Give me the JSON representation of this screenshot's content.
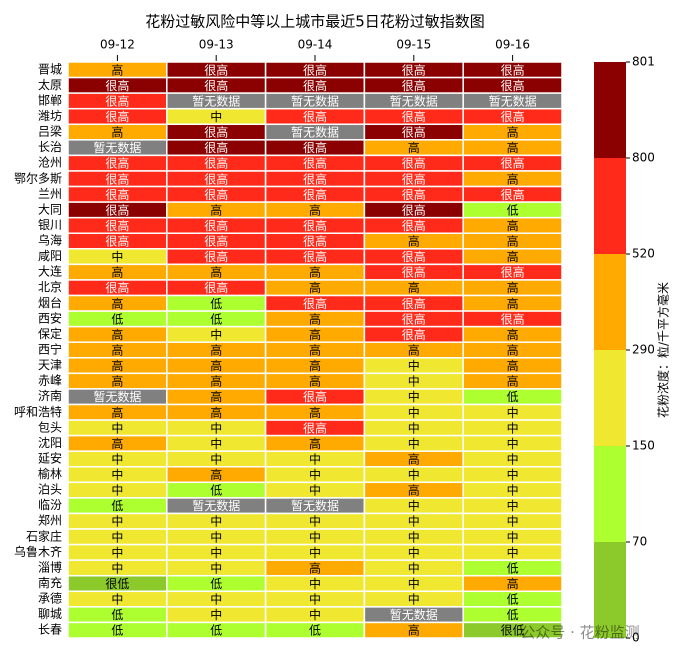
{
  "chart_data": {
    "type": "heatmap",
    "title": "花粉过敏风险中等以上城市最近5日花粉过敏指数图",
    "columns": [
      "09-12",
      "09-13",
      "09-14",
      "09-15",
      "09-16"
    ],
    "rows": [
      "晋城",
      "太原",
      "邯郸",
      "潍坊",
      "吕梁",
      "长治",
      "沧州",
      "鄂尔多斯",
      "兰州",
      "大同",
      "银川",
      "乌海",
      "咸阳",
      "大连",
      "北京",
      "烟台",
      "西安",
      "保定",
      "西宁",
      "天津",
      "赤峰",
      "济南",
      "呼和浩特",
      "包头",
      "沈阳",
      "延安",
      "榆林",
      "泊头",
      "临汾",
      "郑州",
      "石家庄",
      "乌鲁木齐",
      "淄博",
      "南充",
      "承德",
      "聊城",
      "长春"
    ],
    "values": [
      [
        400,
        800,
        800,
        800,
        800
      ],
      [
        800,
        800,
        800,
        800,
        800
      ],
      [
        650,
        null,
        null,
        null,
        null
      ],
      [
        650,
        220,
        650,
        650,
        650
      ],
      [
        400,
        800,
        null,
        800,
        400
      ],
      [
        null,
        800,
        800,
        400,
        400
      ],
      [
        650,
        650,
        650,
        650,
        650
      ],
      [
        650,
        650,
        650,
        650,
        400
      ],
      [
        650,
        650,
        650,
        650,
        650
      ],
      [
        800,
        400,
        400,
        800,
        110
      ],
      [
        650,
        650,
        650,
        650,
        400
      ],
      [
        650,
        650,
        650,
        400,
        400
      ],
      [
        220,
        650,
        650,
        650,
        400
      ],
      [
        400,
        400,
        400,
        650,
        650
      ],
      [
        650,
        650,
        400,
        400,
        400
      ],
      [
        400,
        110,
        650,
        650,
        400
      ],
      [
        110,
        110,
        400,
        650,
        650
      ],
      [
        400,
        220,
        400,
        650,
        400
      ],
      [
        400,
        400,
        400,
        400,
        400
      ],
      [
        400,
        400,
        400,
        220,
        400
      ],
      [
        400,
        400,
        400,
        220,
        400
      ],
      [
        null,
        400,
        650,
        220,
        110
      ],
      [
        400,
        400,
        400,
        220,
        220
      ],
      [
        220,
        220,
        650,
        220,
        220
      ],
      [
        400,
        220,
        400,
        220,
        220
      ],
      [
        220,
        220,
        220,
        400,
        220
      ],
      [
        220,
        400,
        220,
        220,
        220
      ],
      [
        220,
        110,
        220,
        400,
        220
      ],
      [
        110,
        null,
        null,
        220,
        220
      ],
      [
        220,
        220,
        220,
        220,
        220
      ],
      [
        220,
        220,
        220,
        220,
        220
      ],
      [
        220,
        220,
        220,
        220,
        220
      ],
      [
        220,
        220,
        400,
        220,
        110
      ],
      [
        35,
        110,
        220,
        220,
        400
      ],
      [
        220,
        220,
        220,
        220,
        110
      ],
      [
        110,
        220,
        220,
        null,
        110
      ],
      [
        110,
        110,
        110,
        400,
        35
      ]
    ],
    "labels": [
      [
        "高",
        "很高",
        "很高",
        "很高",
        "很高"
      ],
      [
        "很高",
        "很高",
        "很高",
        "很高",
        "很高"
      ],
      [
        "很高",
        "暂无数据",
        "暂无数据",
        "暂无数据",
        "暂无数据"
      ],
      [
        "很高",
        "中",
        "很高",
        "很高",
        "很高"
      ],
      [
        "高",
        "很高",
        "暂无数据",
        "很高",
        "高"
      ],
      [
        "暂无数据",
        "很高",
        "很高",
        "高",
        "高"
      ],
      [
        "很高",
        "很高",
        "很高",
        "很高",
        "很高"
      ],
      [
        "很高",
        "很高",
        "很高",
        "很高",
        "高"
      ],
      [
        "很高",
        "很高",
        "很高",
        "很高",
        "很高"
      ],
      [
        "很高",
        "高",
        "高",
        "很高",
        "低"
      ],
      [
        "很高",
        "很高",
        "很高",
        "很高",
        "高"
      ],
      [
        "很高",
        "很高",
        "很高",
        "高",
        "高"
      ],
      [
        "中",
        "很高",
        "很高",
        "很高",
        "高"
      ],
      [
        "高",
        "高",
        "高",
        "很高",
        "很高"
      ],
      [
        "很高",
        "很高",
        "高",
        "高",
        "高"
      ],
      [
        "高",
        "低",
        "很高",
        "很高",
        "高"
      ],
      [
        "低",
        "低",
        "高",
        "很高",
        "很高"
      ],
      [
        "高",
        "中",
        "高",
        "很高",
        "高"
      ],
      [
        "高",
        "高",
        "高",
        "高",
        "高"
      ],
      [
        "高",
        "高",
        "高",
        "中",
        "高"
      ],
      [
        "高",
        "高",
        "高",
        "中",
        "高"
      ],
      [
        "暂无数据",
        "高",
        "很高",
        "中",
        "低"
      ],
      [
        "高",
        "高",
        "高",
        "中",
        "中"
      ],
      [
        "中",
        "中",
        "很高",
        "中",
        "中"
      ],
      [
        "高",
        "中",
        "高",
        "中",
        "中"
      ],
      [
        "中",
        "中",
        "中",
        "高",
        "中"
      ],
      [
        "中",
        "高",
        "中",
        "中",
        "中"
      ],
      [
        "中",
        "低",
        "中",
        "高",
        "中"
      ],
      [
        "低",
        "暂无数据",
        "暂无数据",
        "中",
        "中"
      ],
      [
        "中",
        "中",
        "中",
        "中",
        "中"
      ],
      [
        "中",
        "中",
        "中",
        "中",
        "中"
      ],
      [
        "中",
        "中",
        "中",
        "中",
        "中"
      ],
      [
        "中",
        "中",
        "高",
        "中",
        "低"
      ],
      [
        "很低",
        "低",
        "中",
        "中",
        "高"
      ],
      [
        "中",
        "中",
        "中",
        "中",
        "低"
      ],
      [
        "低",
        "中",
        "中",
        "暂无数据",
        "低"
      ],
      [
        "低",
        "低",
        "低",
        "高",
        "很低"
      ]
    ],
    "colorbar": {
      "bounds": [
        0,
        70,
        150,
        290,
        520,
        800,
        801
      ],
      "colors": [
        "#8cc92b",
        "#adff2f",
        "#f0e830",
        "#ffaa00",
        "#ff2a1a",
        "#8b0000"
      ],
      "label": "花粉浓度：粒/千平方毫米"
    },
    "nan_color": "#808080",
    "watermark": "公众号 · 花粉监测"
  }
}
